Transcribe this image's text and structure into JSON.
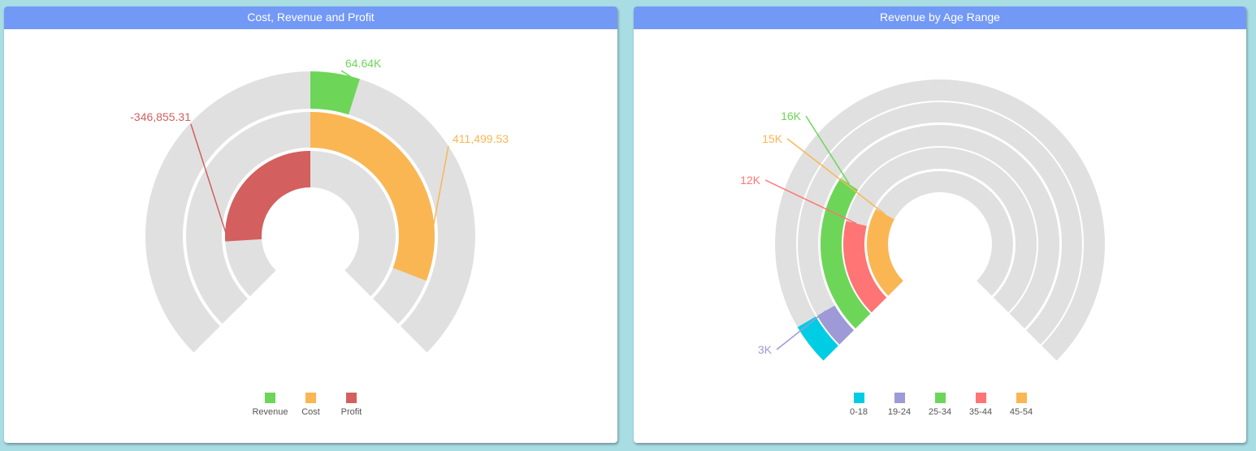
{
  "chart_data": [
    {
      "type": "radial-bar",
      "title": "Cost, Revenue and Profit",
      "max": 1000000,
      "series": [
        {
          "name": "Revenue",
          "value": 64640,
          "label": "64.64K",
          "color": "#6dd659"
        },
        {
          "name": "Cost",
          "value": 411499.53,
          "label": "411,499.53",
          "color": "#fab653"
        },
        {
          "name": "Profit",
          "value": -346855.31,
          "label": "-346,855.31",
          "color": "#d35f5f"
        }
      ],
      "legend_position": "bottom"
    },
    {
      "type": "radial-bar",
      "title": "Revenue by Age Range",
      "max": 55000,
      "series": [
        {
          "name": "0-18",
          "value": 3000,
          "label": "",
          "color": "#00cde4"
        },
        {
          "name": "19-24",
          "value": 3000,
          "label": "3K",
          "color": "#9d9ad7"
        },
        {
          "name": "25-34",
          "value": 16000,
          "label": "16K",
          "color": "#6dd659"
        },
        {
          "name": "35-44",
          "value": 12000,
          "label": "12K",
          "color": "#ff7474"
        },
        {
          "name": "45-54",
          "value": 15000,
          "label": "15K",
          "color": "#fab653"
        }
      ],
      "legend_position": "bottom"
    }
  ]
}
